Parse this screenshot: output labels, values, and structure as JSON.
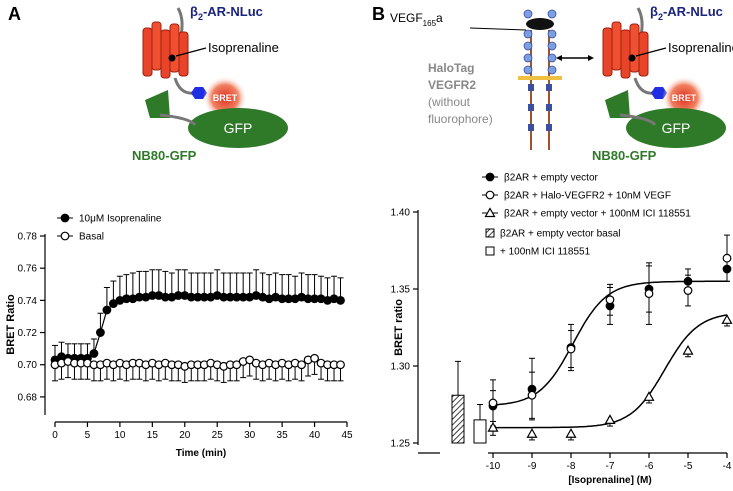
{
  "panels": [
    {
      "label": "A",
      "diagram": {
        "receptor": [
          "β",
          "2",
          "-AR-NLuc"
        ],
        "ligand": "Isoprenaline",
        "signal": "BRET",
        "acceptor": "GFP",
        "nanobody": "NB80-GFP"
      }
    },
    {
      "label": "B",
      "diagram": {
        "growth_factor": [
          "VEGF",
          "165",
          "a"
        ],
        "partner": [
          "HaloTag",
          "VEGFR2",
          "(without",
          "fluorophore)"
        ],
        "receptor": [
          "β",
          "2",
          "-AR-NLuc"
        ],
        "ligand": "Isoprenaline",
        "signal": "BRET",
        "acceptor": "GFP",
        "nanobody": "NB80-GFP"
      }
    }
  ],
  "chart_data": [
    {
      "type": "line",
      "x_label": "Time (min)",
      "y_label": "BRET Ratio",
      "x": [
        0,
        1,
        2,
        3,
        4,
        5,
        6,
        7,
        8,
        9,
        10,
        11,
        12,
        13,
        14,
        15,
        16,
        17,
        18,
        19,
        20,
        21,
        22,
        23,
        24,
        25,
        26,
        27,
        28,
        29,
        30,
        31,
        32,
        33,
        34,
        35,
        36,
        37,
        38,
        39,
        40,
        41,
        42,
        43,
        44
      ],
      "xlim": [
        0,
        45
      ],
      "xticks": [
        0,
        5,
        10,
        15,
        20,
        25,
        30,
        35,
        40,
        45
      ],
      "ylim": [
        0.67,
        0.78
      ],
      "yticks": [
        0.68,
        {
          "value": 0.7,
          "label": "0.70"
        },
        0.72,
        0.74,
        0.76,
        0.78
      ],
      "series": [
        {
          "name": "10μM Isoprenaline",
          "color": "#000000",
          "marker": "filled-circle",
          "error_direction": "up",
          "values": [
            0.703,
            0.705,
            0.704,
            0.704,
            0.704,
            0.704,
            0.707,
            0.72,
            0.734,
            0.738,
            0.74,
            0.741,
            0.741,
            0.742,
            0.742,
            0.743,
            0.743,
            0.742,
            0.742,
            0.743,
            0.743,
            0.742,
            0.742,
            0.742,
            0.742,
            0.743,
            0.742,
            0.742,
            0.742,
            0.742,
            0.742,
            0.743,
            0.742,
            0.741,
            0.742,
            0.741,
            0.741,
            0.741,
            0.742,
            0.741,
            0.741,
            0.741,
            0.74,
            0.741,
            0.74
          ],
          "errors": [
            0.009,
            0.009,
            0.009,
            0.009,
            0.009,
            0.009,
            0.009,
            0.012,
            0.014,
            0.014,
            0.015,
            0.015,
            0.016,
            0.016,
            0.016,
            0.016,
            0.016,
            0.016,
            0.015,
            0.016,
            0.016,
            0.015,
            0.015,
            0.015,
            0.015,
            0.016,
            0.015,
            0.015,
            0.015,
            0.015,
            0.015,
            0.016,
            0.015,
            0.015,
            0.015,
            0.015,
            0.015,
            0.014,
            0.015,
            0.015,
            0.015,
            0.014,
            0.014,
            0.014,
            0.014
          ]
        },
        {
          "name": "Basal",
          "color": "#000000",
          "marker": "open-circle",
          "error_direction": "down",
          "values": [
            0.7,
            0.701,
            0.702,
            0.701,
            0.701,
            0.701,
            0.7,
            0.7,
            0.701,
            0.7,
            0.701,
            0.7,
            0.701,
            0.701,
            0.7,
            0.701,
            0.7,
            0.701,
            0.7,
            0.7,
            0.699,
            0.7,
            0.7,
            0.7,
            0.701,
            0.7,
            0.699,
            0.7,
            0.7,
            0.702,
            0.703,
            0.701,
            0.7,
            0.701,
            0.7,
            0.701,
            0.7,
            0.701,
            0.7,
            0.703,
            0.704,
            0.701,
            0.7,
            0.7,
            0.7
          ],
          "errors": [
            0.01,
            0.01,
            0.01,
            0.01,
            0.01,
            0.01,
            0.01,
            0.01,
            0.01,
            0.01,
            0.01,
            0.01,
            0.01,
            0.01,
            0.01,
            0.01,
            0.01,
            0.01,
            0.01,
            0.01,
            0.01,
            0.01,
            0.01,
            0.01,
            0.01,
            0.01,
            0.01,
            0.01,
            0.01,
            0.01,
            0.01,
            0.01,
            0.01,
            0.01,
            0.01,
            0.01,
            0.01,
            0.01,
            0.01,
            0.01,
            0.01,
            0.01,
            0.01,
            0.01,
            0.01
          ]
        }
      ]
    },
    {
      "type": "line",
      "x_label": "[Isoprenaline] (M)",
      "y_label": "BRET ratio",
      "x": [
        -10,
        -9,
        -8,
        -7,
        -6,
        -5,
        -4
      ],
      "xlim": [
        -10,
        -4
      ],
      "xticks": [
        -10,
        -9,
        -8,
        -7,
        -6,
        -5,
        -4
      ],
      "ylim": [
        1.25,
        1.4
      ],
      "yticks": [
        1.25,
        {
          "value": 1.3,
          "label": "1.30"
        },
        1.35,
        {
          "value": 1.4,
          "label": "1.40"
        }
      ],
      "series": [
        {
          "name": "β2AR + empty vector",
          "color": "#000000",
          "marker": "filled-circle",
          "error_direction": "both",
          "values": [
            1.274,
            1.285,
            1.312,
            1.339,
            1.35,
            1.355,
            1.363
          ],
          "errors": [
            0.01,
            0.02,
            0.015,
            0.012,
            0.015,
            0.008,
            0.008
          ],
          "fit": {
            "bottom": 1.274,
            "top": 1.355,
            "logec50": -7.95
          }
        },
        {
          "name": "β2AR + Halo-VEGFR2 + 10nM VEGF",
          "color": "#000000",
          "marker": "open-circle",
          "error_direction": "both",
          "values": [
            1.276,
            1.281,
            1.311,
            1.343,
            1.347,
            1.349,
            1.37
          ],
          "errors": [
            0.015,
            0.015,
            0.012,
            0.01,
            0.02,
            0.01,
            0.015
          ]
        },
        {
          "name": "β2AR + empty vector + 100nM ICI 118551",
          "color": "#000000",
          "marker": "open-triangle",
          "error_direction": "down",
          "values": [
            1.26,
            1.256,
            1.256,
            1.265,
            1.28,
            1.31,
            1.33
          ],
          "errors": [
            0.005,
            0.004,
            0.004,
            0.004,
            0.004,
            0.004,
            0.004
          ],
          "fit": {
            "bottom": 1.26,
            "top": 1.335,
            "logec50": -5.6
          }
        }
      ],
      "bars": [
        {
          "name": "β2AR + empty vector basal",
          "pattern": "hatched",
          "value": 1.281,
          "error": 0.022
        },
        {
          "name": " + 100nM ICI 118551",
          "pattern": "open",
          "value": 1.265,
          "error": 0.01
        }
      ]
    }
  ]
}
